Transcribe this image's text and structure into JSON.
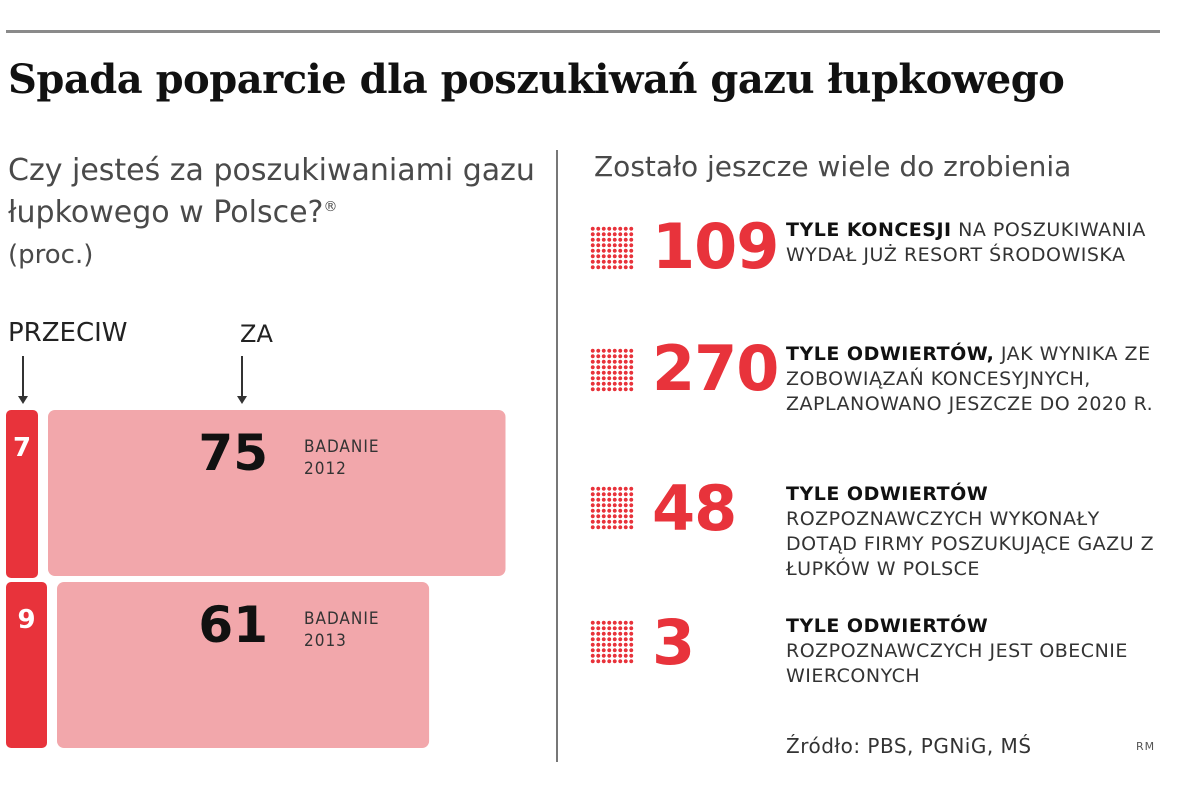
{
  "title": "Spada poparcie dla poszukiwań gazu łupkowego",
  "left_panel": {
    "question": "Czy jesteś za poszukiwaniami gazu łupkowego w Polsce?",
    "question_mark_sup": "®",
    "unit": "(proc.)",
    "label_against": "PRZECIW",
    "label_for": "ZA"
  },
  "chart_data": {
    "type": "bar",
    "categories": [
      "BADANIE 2012",
      "BADANIE 2013"
    ],
    "series": [
      {
        "name": "PRZECIW",
        "values": [
          7,
          9
        ]
      },
      {
        "name": "ZA",
        "values": [
          75,
          61
        ]
      }
    ],
    "survey_labels": [
      {
        "line1": "BADANIE",
        "line2": "2012"
      },
      {
        "line1": "BADANIE",
        "line2": "2013"
      }
    ],
    "colors": {
      "against": "#e8333b",
      "for": "#f2a7ab"
    }
  },
  "right_panel": {
    "heading": "Zostało jeszcze wiele do zrobienia",
    "stats": [
      {
        "value": "109",
        "bold": "TYLE KONCESJI",
        "text": " NA POSZUKIWANIA WYDAŁ JUŻ RESORT ŚRODOWISKA"
      },
      {
        "value": "270",
        "bold": "TYLE ODWIERTÓW,",
        "text": " JAK WYNIKA ZE ZOBOWIĄZAŃ KONCESYJNYCH, ZAPLANOWANO JESZCZE DO 2020 R."
      },
      {
        "value": "48",
        "bold": "TYLE ODWIERTÓW",
        "text": " ROZPOZNAWCZYCH WYKONAŁY DOTĄD FIRMY POSZUKUJĄCE GAZU Z ŁUPKÓW W POLSCE"
      },
      {
        "value": "3",
        "bold": "TYLE ODWIERTÓW",
        "text": " ROZPOZNAWCZYCH JEST OBECNIE WIERCONYCH"
      }
    ],
    "accent_color": "#e8333b"
  },
  "source": "Źródło: PBS, PGNiG, MŚ",
  "credit": "RM"
}
